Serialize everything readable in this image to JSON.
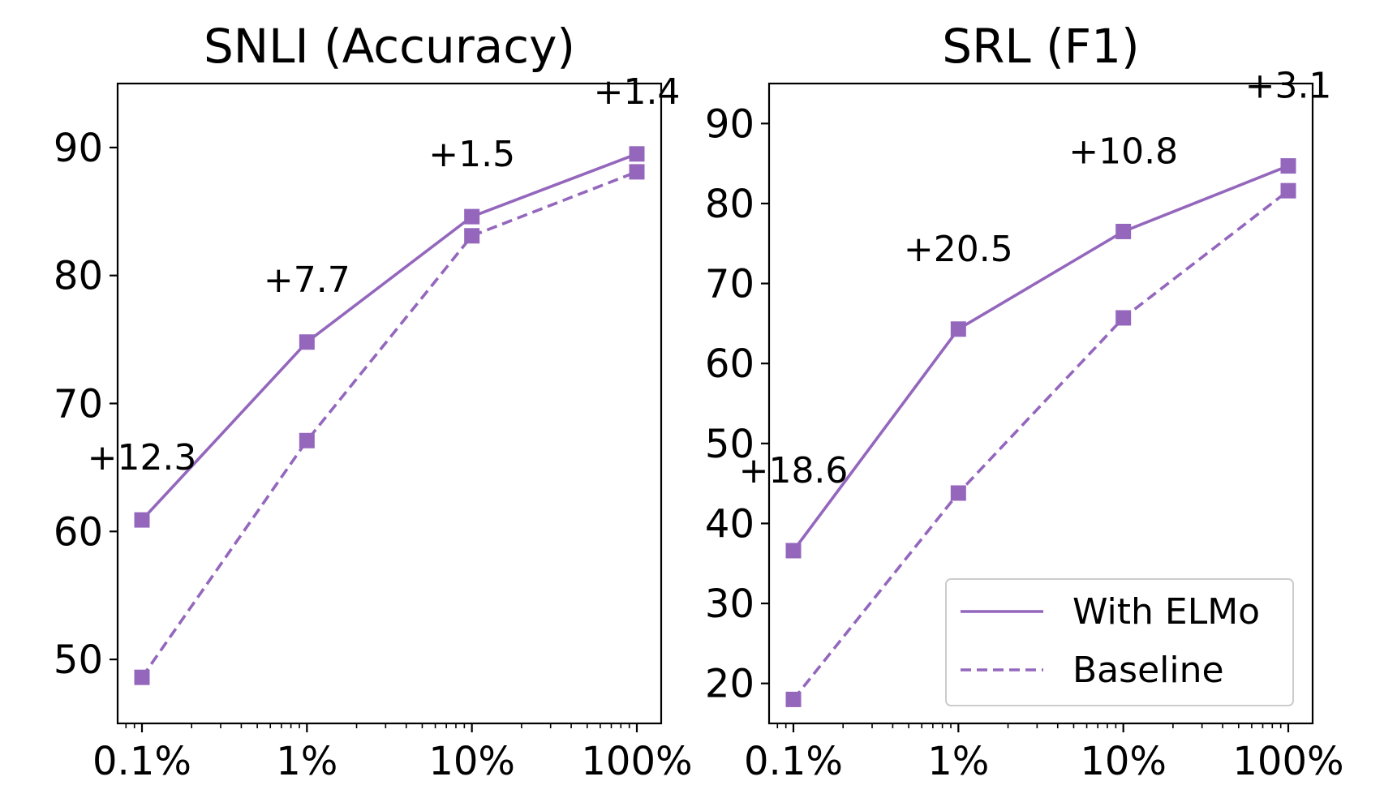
{
  "chart_data": [
    {
      "type": "line",
      "title": "SNLI (Accuracy)",
      "xscale": "log",
      "x": [
        0.1,
        1,
        10,
        100
      ],
      "xtick_labels": [
        "0.1%",
        "1%",
        "10%",
        "100%"
      ],
      "ylim": [
        45,
        95
      ],
      "yticks": [
        50,
        60,
        70,
        80,
        90
      ],
      "series": [
        {
          "name": "With ELMo",
          "style": "solid",
          "values": [
            60.9,
            74.8,
            84.6,
            89.5
          ]
        },
        {
          "name": "Baseline",
          "style": "dashed",
          "values": [
            48.6,
            67.1,
            83.1,
            88.1
          ]
        }
      ],
      "annotations": [
        {
          "text": "+12.3",
          "x": 0.1
        },
        {
          "text": "+7.7",
          "x": 1
        },
        {
          "text": "+1.5",
          "x": 10
        },
        {
          "text": "+1.4",
          "x": 100
        }
      ],
      "color": "#9467bd",
      "grid": false
    },
    {
      "type": "line",
      "title": "SRL (F1)",
      "xscale": "log",
      "x": [
        0.1,
        1,
        10,
        100
      ],
      "xtick_labels": [
        "0.1%",
        "1%",
        "10%",
        "100%"
      ],
      "ylim": [
        15,
        95
      ],
      "yticks": [
        20,
        30,
        40,
        50,
        60,
        70,
        80,
        90
      ],
      "series": [
        {
          "name": "With ELMo",
          "style": "solid",
          "values": [
            36.6,
            64.3,
            76.5,
            84.7
          ]
        },
        {
          "name": "Baseline",
          "style": "dashed",
          "values": [
            18.0,
            43.8,
            65.7,
            81.6
          ]
        }
      ],
      "annotations": [
        {
          "text": "+18.6",
          "x": 0.1
        },
        {
          "text": "+20.5",
          "x": 1
        },
        {
          "text": "+10.8",
          "x": 10
        },
        {
          "text": "+3.1",
          "x": 100
        }
      ],
      "legend": {
        "placement": "lower-right",
        "entries": [
          "With ELMo",
          "Baseline"
        ]
      },
      "color": "#9467bd",
      "grid": false
    }
  ]
}
